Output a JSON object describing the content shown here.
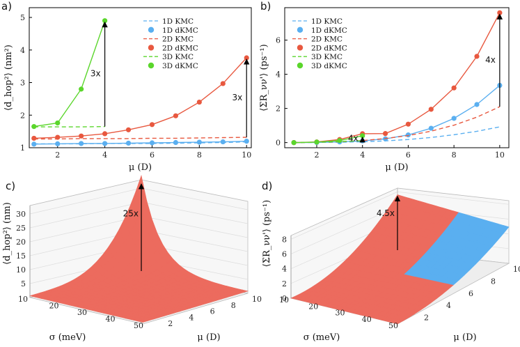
{
  "colors": {
    "d1": "#5aaff0",
    "d2": "#e8583f",
    "d3": "#5bd62c",
    "surf_red": "#ec6b5e",
    "surf_blue": "#5aaff0"
  },
  "chart_data": [
    {
      "id": "a",
      "type": "line",
      "panel_label": "a)",
      "xlabel": "μ (D)",
      "ylabel": "⟨d_hop²⟩ (nm²)",
      "xlim": [
        0.8,
        10.2
      ],
      "ylim": [
        1.0,
        5.3
      ],
      "xticks": [
        "2",
        "4",
        "6",
        "8",
        "10"
      ],
      "yticks": [
        "1",
        "2",
        "3",
        "4",
        "5"
      ],
      "legend": [
        "1D KMC",
        "1D dKMC",
        "2D KMC",
        "2D dKMC",
        "3D KMC",
        "3D dKMC"
      ],
      "series": [
        {
          "name": "1D KMC",
          "style": "dashed",
          "color_key": "d1",
          "x": [
            1,
            2,
            3,
            4,
            5,
            6,
            7,
            8,
            9,
            10
          ],
          "y": [
            1.12,
            1.12,
            1.12,
            1.13,
            1.13,
            1.13,
            1.14,
            1.15,
            1.16,
            1.18
          ]
        },
        {
          "name": "1D dKMC",
          "style": "markers",
          "color_key": "d1",
          "x": [
            1,
            2,
            3,
            4,
            5,
            6,
            7,
            8,
            9,
            10
          ],
          "y": [
            1.11,
            1.12,
            1.13,
            1.13,
            1.14,
            1.15,
            1.16,
            1.17,
            1.18,
            1.2
          ]
        },
        {
          "name": "2D KMC",
          "style": "dashed",
          "color_key": "d2",
          "x": [
            1,
            2,
            3,
            4,
            5,
            6,
            7,
            8,
            9,
            10
          ],
          "y": [
            1.27,
            1.27,
            1.28,
            1.28,
            1.28,
            1.29,
            1.29,
            1.3,
            1.31,
            1.32
          ]
        },
        {
          "name": "2D dKMC",
          "style": "markers",
          "color_key": "d2",
          "x": [
            1,
            2,
            3,
            4,
            5,
            6,
            7,
            8,
            9,
            10
          ],
          "y": [
            1.29,
            1.32,
            1.36,
            1.43,
            1.55,
            1.71,
            1.98,
            2.4,
            2.97,
            3.76
          ]
        },
        {
          "name": "3D KMC",
          "style": "dashed",
          "color_key": "d3",
          "x": [
            1,
            2,
            3,
            4
          ],
          "y": [
            1.64,
            1.64,
            1.64,
            1.65
          ]
        },
        {
          "name": "3D dKMC",
          "style": "markers",
          "color_key": "d3",
          "x": [
            1,
            2,
            3,
            4
          ],
          "y": [
            1.65,
            1.76,
            2.8,
            4.9
          ]
        }
      ],
      "annotations": [
        {
          "text": "3x",
          "x": 4,
          "from": 1.65,
          "to": 4.9
        },
        {
          "text": "3x",
          "x": 10,
          "from": 1.32,
          "to": 3.76
        }
      ]
    },
    {
      "id": "b",
      "type": "line",
      "panel_label": "b)",
      "xlabel": "μ (D)",
      "ylabel": "⟨ΣR_νν'⟩ (ps⁻¹)",
      "xlim": [
        0.6,
        10.4
      ],
      "ylim": [
        -0.3,
        7.9
      ],
      "xticks": [
        "2",
        "4",
        "6",
        "8",
        "10"
      ],
      "yticks": [
        "0",
        "2",
        "4",
        "6"
      ],
      "legend": [
        "1D KMC",
        "1D dKMC",
        "2D KMC",
        "2D dKMC",
        "3D KMC",
        "3D dKMC"
      ],
      "series": [
        {
          "name": "1D KMC",
          "style": "dashed",
          "color_key": "d1",
          "x": [
            1,
            2,
            3,
            4,
            5,
            6,
            7,
            8,
            9,
            10
          ],
          "y": [
            0.0,
            0.01,
            0.02,
            0.05,
            0.1,
            0.18,
            0.3,
            0.46,
            0.66,
            0.92
          ]
        },
        {
          "name": "1D dKMC",
          "style": "markers",
          "color_key": "d1",
          "x": [
            1,
            2,
            3,
            4,
            5,
            6,
            7,
            8,
            9,
            10
          ],
          "y": [
            0.0,
            0.01,
            0.04,
            0.1,
            0.22,
            0.45,
            0.84,
            1.42,
            2.23,
            3.35
          ]
        },
        {
          "name": "2D KMC",
          "style": "dashed",
          "color_key": "d2",
          "x": [
            1,
            2,
            3,
            4,
            5,
            6,
            7,
            8,
            9,
            10
          ],
          "y": [
            0.0,
            0.02,
            0.05,
            0.12,
            0.24,
            0.41,
            0.67,
            1.02,
            1.49,
            2.1
          ]
        },
        {
          "name": "2D dKMC",
          "style": "markers",
          "color_key": "d2",
          "x": [
            1,
            2,
            3,
            4,
            5,
            6,
            7,
            8,
            9,
            10
          ],
          "y": [
            0.0,
            0.04,
            0.18,
            0.52,
            0.53,
            1.08,
            1.95,
            3.2,
            5.05,
            7.6
          ]
        },
        {
          "name": "3D KMC",
          "style": "dashed",
          "color_key": "d3",
          "x": [
            1,
            2,
            3,
            4
          ],
          "y": [
            0.0,
            0.02,
            0.06,
            0.11
          ]
        },
        {
          "name": "3D dKMC",
          "style": "markers",
          "color_key": "d3",
          "x": [
            1,
            2,
            3,
            4
          ],
          "y": [
            0.0,
            0.03,
            0.12,
            0.4
          ]
        }
      ],
      "annotations": [
        {
          "text": "4x",
          "x": 4,
          "from": 0.1,
          "to": 0.4
        },
        {
          "text": "4x",
          "x": 10,
          "from": 2.1,
          "to": 7.6
        }
      ]
    },
    {
      "id": "c",
      "type": "surface",
      "panel_label": "c)",
      "xlabel": "σ (meV)",
      "ylabel": "μ (D)",
      "zlabel": "⟨d_hop²⟩ (nm)",
      "sigma_ticks": [
        "10",
        "20",
        "30",
        "40",
        "50"
      ],
      "mu_ticks": [
        "2",
        "4",
        "6",
        "8",
        "10"
      ],
      "zticks": [
        "5",
        "10",
        "15",
        "20",
        "25",
        "30"
      ],
      "zlim": [
        0,
        33
      ],
      "peak": {
        "sigma": 10,
        "mu": 10,
        "z": 32
      },
      "annotation": "25x"
    },
    {
      "id": "d",
      "type": "surface",
      "panel_label": "d)",
      "xlabel": "σ (meV)",
      "ylabel": "μ (D)",
      "zlabel": "⟨ΣR_νν'⟩ (ps⁻¹)",
      "sigma_ticks": [
        "10",
        "20",
        "30",
        "40",
        "50"
      ],
      "mu_ticks": [
        "2",
        "4",
        "6",
        "8",
        "10"
      ],
      "zticks": [
        "0",
        "2",
        "4",
        "6",
        "8"
      ],
      "zlim": [
        0,
        8.5
      ],
      "peak": {
        "sigma": 10,
        "mu": 10,
        "z": 7.6
      },
      "annotation": "4.5x"
    }
  ]
}
